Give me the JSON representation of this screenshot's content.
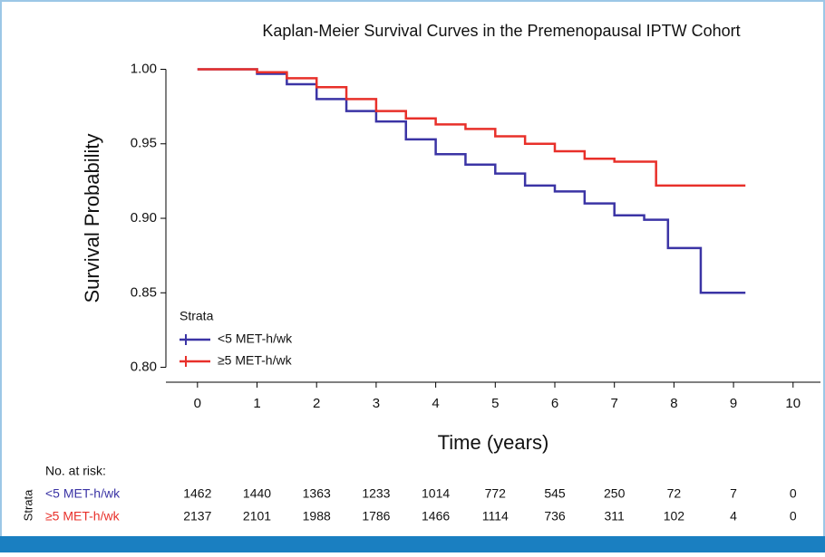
{
  "chart_data": {
    "type": "step",
    "title": "Kaplan-Meier Survival Curves in the Premenopausal IPTW Cohort",
    "xlabel": "Time (years)",
    "ylabel": "Survival Probability",
    "xlim": [
      -0.53,
      10.46
    ],
    "xticks": [
      0,
      1,
      2,
      3,
      4,
      5,
      6,
      7,
      8,
      9,
      10
    ],
    "ylim": [
      0.79,
      1.007
    ],
    "yticks": [
      {
        "value": 0.8,
        "label": "0.80"
      },
      0.85,
      {
        "value": 0.9,
        "label": "0.90"
      },
      0.95,
      {
        "value": 1,
        "label": "1.00"
      }
    ],
    "legend_title": "Strata",
    "series": [
      {
        "name": "<5 MET-h/wk",
        "color": "#3b34a5",
        "x": [
          0,
          0.7,
          1,
          1.5,
          2,
          2.5,
          3,
          3.5,
          4,
          4.5,
          5,
          5.5,
          6,
          6.5,
          7,
          7.5,
          7.9,
          8.45,
          9.2
        ],
        "values": [
          1,
          1,
          0.997,
          0.99,
          0.98,
          0.972,
          0.965,
          0.953,
          0.943,
          0.936,
          0.93,
          0.922,
          0.918,
          0.91,
          0.902,
          0.899,
          0.88,
          0.85,
          0.85
        ]
      },
      {
        "name": "≥5 MET-h/wk",
        "color": "#e8302a",
        "x": [
          0,
          0.8,
          1,
          1.5,
          2,
          2.5,
          3,
          3.5,
          4,
          4.5,
          5,
          5.5,
          6,
          6.5,
          7,
          7.7,
          9.2
        ],
        "values": [
          1,
          1,
          0.998,
          0.994,
          0.988,
          0.98,
          0.972,
          0.967,
          0.963,
          0.96,
          0.955,
          0.95,
          0.945,
          0.94,
          0.938,
          0.922,
          0.922
        ]
      }
    ],
    "risk_table": {
      "title": "No. at risk:",
      "strata_label": "Strata",
      "rows": [
        {
          "name": "<5 MET-h/wk",
          "values": [
            1462,
            1440,
            1363,
            1233,
            1014,
            772,
            545,
            250,
            72,
            7,
            0
          ]
        },
        {
          "name": "≥5 MET-h/wk",
          "values": [
            2137,
            2101,
            1988,
            1786,
            1466,
            1114,
            736,
            311,
            102,
            4,
            0
          ]
        }
      ]
    }
  }
}
